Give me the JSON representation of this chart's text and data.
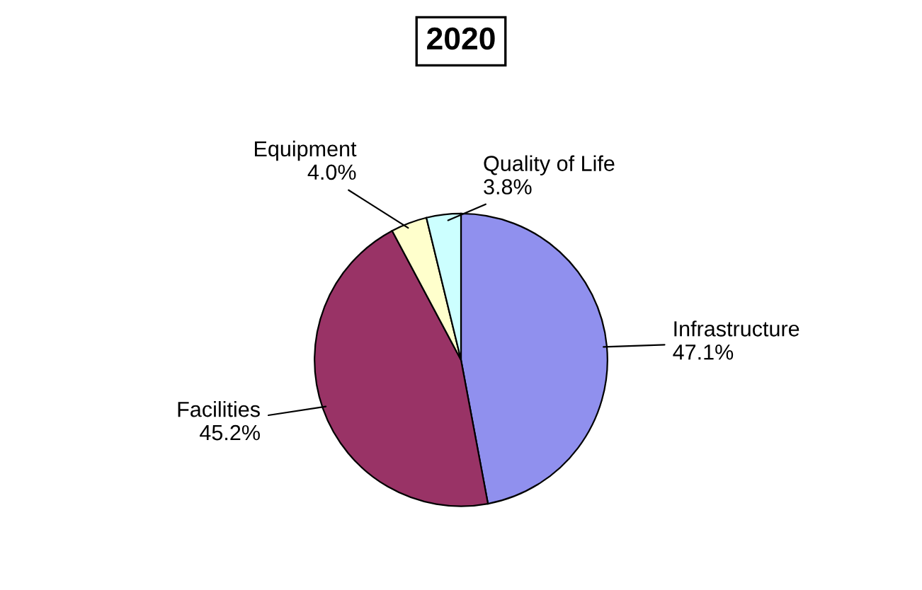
{
  "chart_data": {
    "type": "pie",
    "title": "2020",
    "categories": [
      "Infrastructure",
      "Facilities",
      "Equipment",
      "Quality of Life"
    ],
    "values": [
      47.1,
      45.2,
      4.0,
      3.8
    ],
    "value_labels": [
      "47.1%",
      "45.2%",
      "4.0%",
      "3.8%"
    ],
    "colors": [
      "#9090ee",
      "#993366",
      "#ffffcc",
      "#ccffff"
    ],
    "legend": false
  }
}
